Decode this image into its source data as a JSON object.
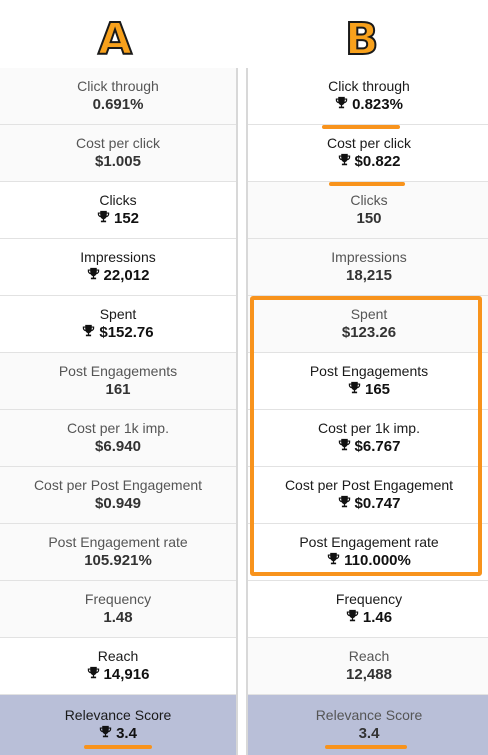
{
  "headers": {
    "a": "A",
    "b": "B"
  },
  "columnA": [
    {
      "label": "Click through",
      "value": "0.691%",
      "winner": false
    },
    {
      "label": "Cost per click",
      "value": "$1.005",
      "winner": false
    },
    {
      "label": "Clicks",
      "value": "152",
      "winner": true
    },
    {
      "label": "Impressions",
      "value": "22,012",
      "winner": true
    },
    {
      "label": "Spent",
      "value": "$152.76",
      "winner": true
    },
    {
      "label": "Post Engagements",
      "value": "161",
      "winner": false
    },
    {
      "label": "Cost per 1k imp.",
      "value": "$6.940",
      "winner": false
    },
    {
      "label": "Cost per Post Engagement",
      "value": "$0.949",
      "winner": false
    },
    {
      "label": "Post Engagement rate",
      "value": "105.921%",
      "winner": false
    },
    {
      "label": "Frequency",
      "value": "1.48",
      "winner": false
    },
    {
      "label": "Reach",
      "value": "14,916",
      "winner": true
    },
    {
      "label": "Relevance Score",
      "value": "3.4",
      "winner": true
    }
  ],
  "columnB": [
    {
      "label": "Click through",
      "value": "0.823%",
      "winner": true
    },
    {
      "label": "Cost per click",
      "value": "$0.822",
      "winner": true
    },
    {
      "label": "Clicks",
      "value": "150",
      "winner": false
    },
    {
      "label": "Impressions",
      "value": "18,215",
      "winner": false
    },
    {
      "label": "Spent",
      "value": "$123.26",
      "winner": false
    },
    {
      "label": "Post Engagements",
      "value": "165",
      "winner": true
    },
    {
      "label": "Cost per 1k imp.",
      "value": "$6.767",
      "winner": true
    },
    {
      "label": "Cost per Post Engagement",
      "value": "$0.747",
      "winner": true
    },
    {
      "label": "Post Engagement rate",
      "value": "110.000%",
      "winner": true
    },
    {
      "label": "Frequency",
      "value": "1.46",
      "winner": true
    },
    {
      "label": "Reach",
      "value": "12,488",
      "winner": false
    },
    {
      "label": "Relevance Score",
      "value": "3.4",
      "winner": false
    }
  ],
  "icons": {
    "winner": "trophy-icon"
  },
  "colors": {
    "accent": "#f8931c",
    "relevance_bg": "#b9bfd8"
  }
}
